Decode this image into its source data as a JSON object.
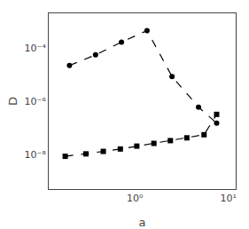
{
  "chart_data": {
    "type": "line",
    "x_label": "a",
    "y_label": "D",
    "log": true,
    "grid": false,
    "xlim": [
      0.12,
      12
    ],
    "ylim": [
      5e-10,
      0.002
    ],
    "xticks": [
      {
        "value": 1,
        "label": "10⁰"
      },
      {
        "value": 10,
        "label": "10¹"
      }
    ],
    "yticks": [
      {
        "value": 1e-08,
        "label": "10⁻⁸"
      },
      {
        "value": 1e-06,
        "label": "10⁻⁶"
      },
      {
        "value": 0.0001,
        "label": "10⁻⁴"
      }
    ],
    "series": [
      {
        "x": [
          0.18,
          0.3,
          0.46,
          0.7,
          1.05,
          1.6,
          2.4,
          3.6,
          5.5,
          7.5
        ],
        "values": [
          8.5e-09,
          1.05e-08,
          1.3e-08,
          1.6e-08,
          2.05e-08,
          2.6e-08,
          3.3e-08,
          4.2e-08,
          5.5e-08,
          3.2e-07
        ],
        "color": "black",
        "marker": "square",
        "line_style": "dashed"
      },
      {
        "x": [
          0.2,
          0.38,
          0.72,
          1.35,
          2.5,
          4.8,
          7.5
        ],
        "values": [
          2.2e-05,
          5.5e-05,
          0.000165,
          0.00045,
          8.5e-06,
          6e-07,
          1.5e-07
        ],
        "color": "black",
        "marker": "circle",
        "line_style": "dashed"
      }
    ]
  }
}
